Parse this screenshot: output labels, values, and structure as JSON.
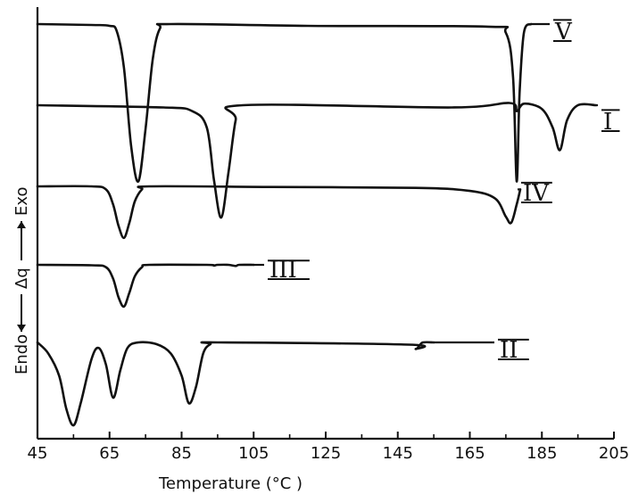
{
  "chart_data": {
    "type": "line",
    "title": "",
    "xlabel": "Temperature (°C )",
    "ylabel": {
      "endo": "Endo",
      "delta": "Δq",
      "exo": "Exo"
    },
    "xlim": [
      45,
      205
    ],
    "xticks": [
      "45",
      "65",
      "85",
      "105",
      "125",
      "145",
      "165",
      "185",
      "205"
    ],
    "grid": false,
    "series": [
      {
        "name": "V",
        "label_at": [
          181,
          0
        ],
        "points": [
          [
            45,
            0
          ],
          [
            60,
            -0.1
          ],
          [
            65,
            -0.2
          ],
          [
            67,
            -0.8
          ],
          [
            69,
            -5
          ],
          [
            71,
            -14
          ],
          [
            73,
            -18
          ],
          [
            75,
            -12
          ],
          [
            77,
            -4
          ],
          [
            79,
            -0.5
          ],
          [
            82,
            0
          ],
          [
            120,
            -0.2
          ],
          [
            170,
            -0.3
          ],
          [
            175,
            -1
          ],
          [
            177,
            -6
          ],
          [
            178,
            -18
          ],
          [
            178.8,
            -8
          ],
          [
            180,
            -1
          ],
          [
            182,
            0
          ]
        ]
      },
      {
        "name": "I",
        "label_at": [
          193,
          0
        ],
        "points": [
          [
            45,
            0
          ],
          [
            80,
            -0.3
          ],
          [
            88,
            -0.8
          ],
          [
            92,
            -3
          ],
          [
            94,
            -10
          ],
          [
            96,
            -15
          ],
          [
            98,
            -9
          ],
          [
            100,
            -2
          ],
          [
            102,
            0
          ],
          [
            160,
            -0.3
          ],
          [
            176,
            0.3
          ],
          [
            178,
            -0.8
          ],
          [
            180,
            0.2
          ],
          [
            185,
            -0.5
          ],
          [
            188,
            -3
          ],
          [
            190,
            -6
          ],
          [
            192,
            -2
          ],
          [
            195,
            0
          ],
          [
            200,
            0
          ]
        ]
      },
      {
        "name": "IV",
        "label_at": [
          176,
          0
        ],
        "points": [
          [
            45,
            0
          ],
          [
            60,
            0
          ],
          [
            64,
            -1
          ],
          [
            66,
            -6
          ],
          [
            67.5,
            -13
          ],
          [
            69,
            -17
          ],
          [
            70.5,
            -12
          ],
          [
            72,
            -5
          ],
          [
            74,
            -1
          ],
          [
            76,
            0
          ],
          [
            110,
            -0.2
          ],
          [
            150,
            -0.5
          ],
          [
            165,
            -1.5
          ],
          [
            172,
            -4
          ],
          [
            175,
            -10
          ],
          [
            176.5,
            -12
          ],
          [
            178,
            -6
          ],
          [
            179,
            -1
          ]
        ]
      },
      {
        "name": "III",
        "label_at": [
          108,
          0
        ],
        "points": [
          [
            45,
            0
          ],
          [
            60,
            -0.2
          ],
          [
            64,
            -1
          ],
          [
            66,
            -6
          ],
          [
            67.5,
            -14
          ],
          [
            69,
            -18
          ],
          [
            70.5,
            -12
          ],
          [
            72,
            -5
          ],
          [
            74,
            -1
          ],
          [
            76,
            0
          ],
          [
            92,
            0
          ],
          [
            94,
            -0.3
          ],
          [
            95,
            0
          ],
          [
            98,
            0
          ],
          [
            100,
            -0.5
          ],
          [
            101,
            0
          ],
          [
            105,
            0
          ]
        ]
      },
      {
        "name": "II",
        "label_at": [
          155,
          0
        ],
        "points": [
          [
            45,
            0
          ],
          [
            48,
            -2
          ],
          [
            51,
            -6
          ],
          [
            53,
            -12
          ],
          [
            55,
            -15
          ],
          [
            57,
            -11
          ],
          [
            60,
            -3
          ],
          [
            62,
            -1
          ],
          [
            64,
            -4
          ],
          [
            66,
            -10
          ],
          [
            68,
            -5
          ],
          [
            70,
            -1
          ],
          [
            73,
            0
          ],
          [
            78,
            -0.3
          ],
          [
            82,
            -2
          ],
          [
            85,
            -6
          ],
          [
            87,
            -11
          ],
          [
            89,
            -8
          ],
          [
            91,
            -2
          ],
          [
            93,
            -0.3
          ],
          [
            95,
            0
          ],
          [
            148,
            -0.4
          ],
          [
            150,
            -1.2
          ],
          [
            151,
            -0.6
          ],
          [
            152,
            0
          ],
          [
            155,
            0
          ]
        ]
      }
    ],
    "series_labels": [
      "V",
      "I",
      "IV",
      "III",
      "II"
    ]
  },
  "colors": {
    "ink": "#111111",
    "background": "#ffffff"
  }
}
